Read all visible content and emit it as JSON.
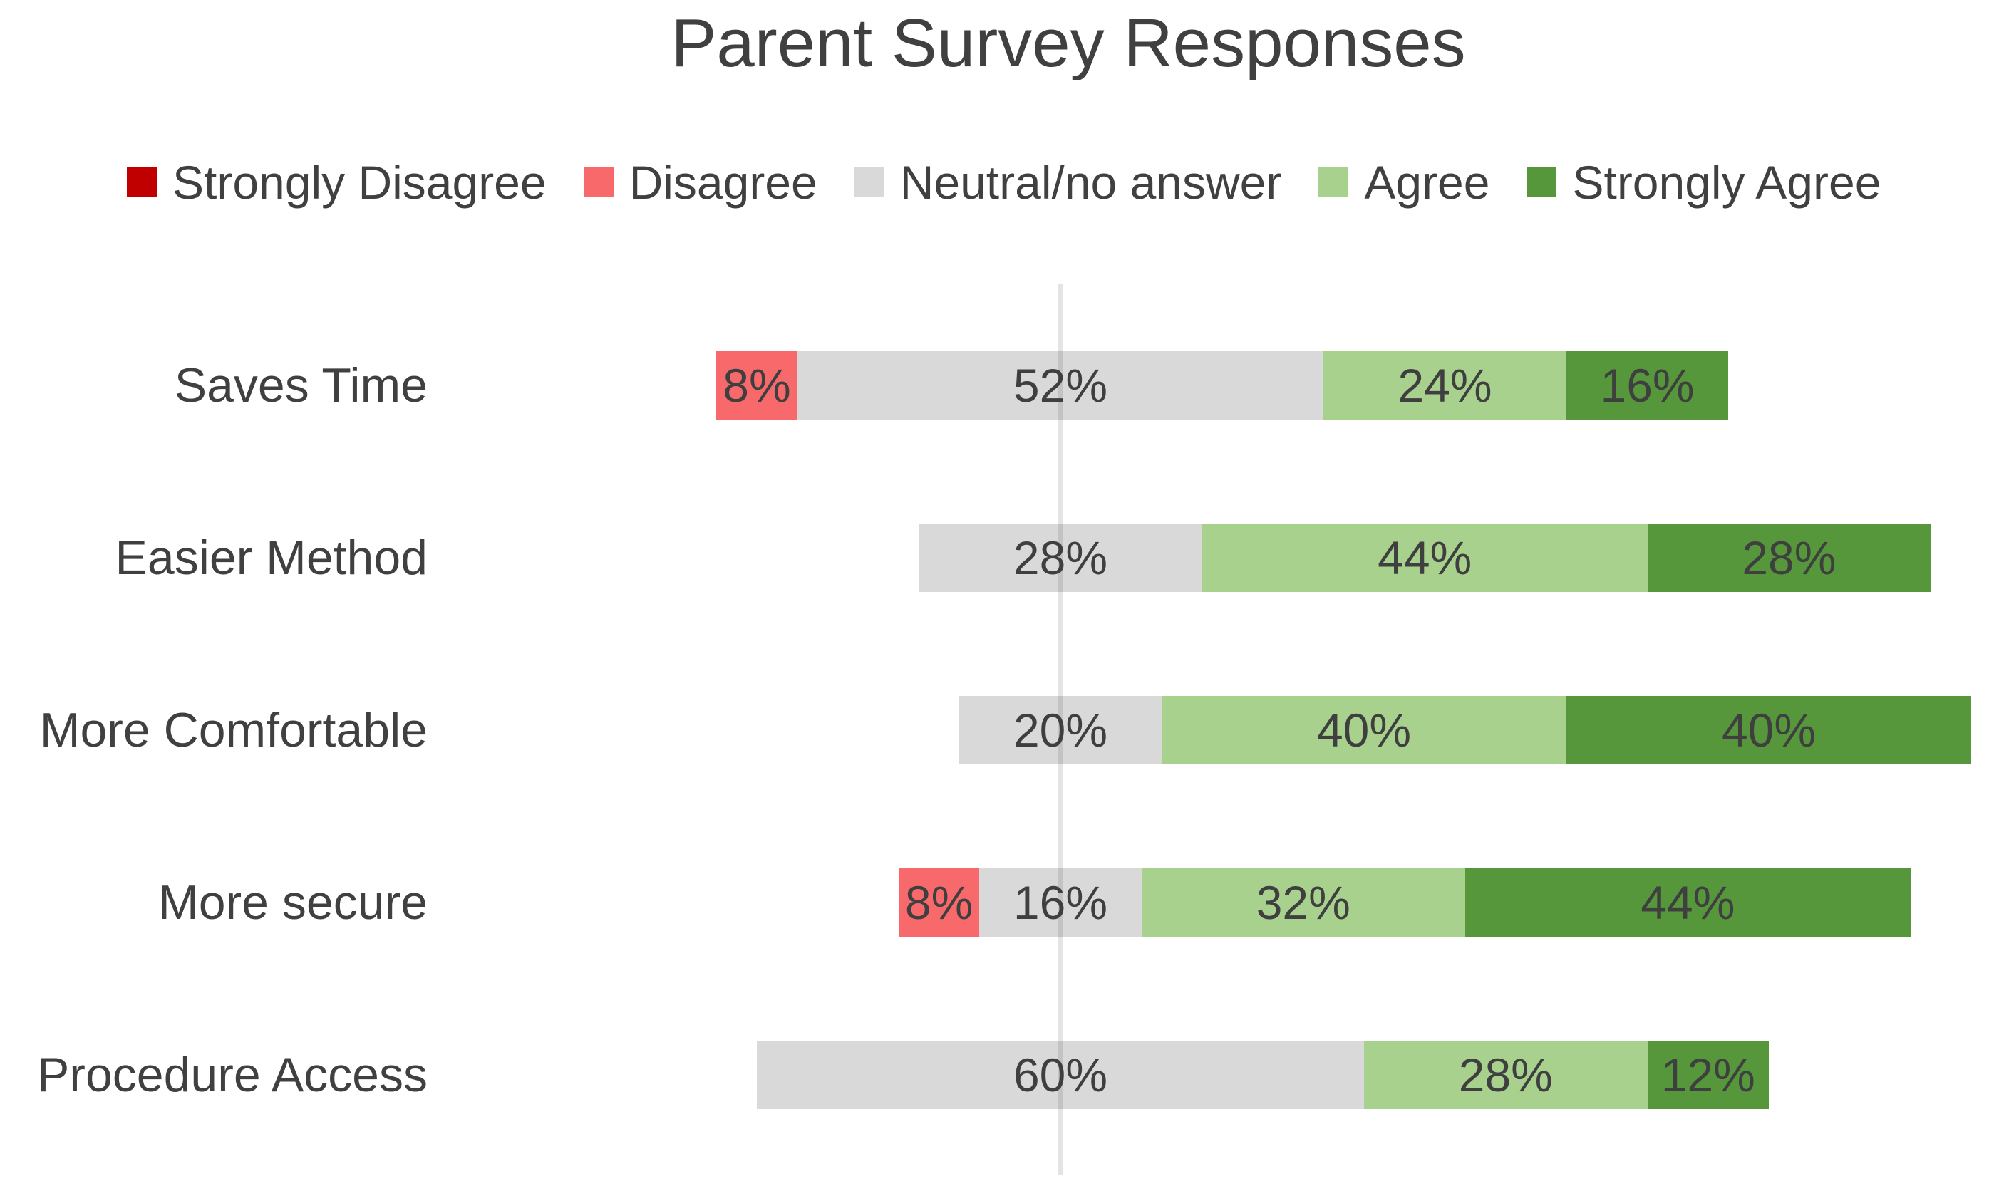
{
  "title": "Parent Survey Responses",
  "colors": {
    "text": "#404040",
    "data_label_text": "#3F3F3F",
    "background": "#FFFFFF",
    "axis_gridline": "#DEDEDE"
  },
  "chart_data": {
    "type": "bar",
    "subtype": "diverging-stacked-horizontal",
    "title": "Parent Survey Responses",
    "unit": "%",
    "legend_position": "top",
    "legend": [
      {
        "label": "Strongly Disagree",
        "color": "#C00000"
      },
      {
        "label": "Disagree",
        "color": "#F8696B"
      },
      {
        "label": "Neutral/no answer",
        "color": "#D9D9D9"
      },
      {
        "label": "Agree",
        "color": "#A9D18E"
      },
      {
        "label": "Strongly Agree",
        "color": "#56973C"
      }
    ],
    "categories": [
      "Saves Time",
      "Easier Method",
      "More Comfortable",
      "More secure",
      "Procedure Access"
    ],
    "series": [
      {
        "name": "Strongly Disagree",
        "color": "#C00000",
        "values": [
          0,
          0,
          0,
          0,
          0
        ]
      },
      {
        "name": "Disagree",
        "color": "#F8696B",
        "values": [
          8,
          0,
          0,
          8,
          0
        ]
      },
      {
        "name": "Neutral/no answer",
        "color": "#D9D9D9",
        "values": [
          52,
          28,
          20,
          16,
          60
        ]
      },
      {
        "name": "Agree",
        "color": "#A9D18E",
        "values": [
          24,
          44,
          40,
          32,
          28
        ]
      },
      {
        "name": "Strongly Agree",
        "color": "#56973C",
        "values": [
          16,
          28,
          40,
          44,
          12
        ]
      }
    ],
    "data_labels": "value with % sign centered inside each nonzero segment",
    "axis": {
      "orientation": "horizontal bars, single vertical gridline",
      "alignment": "negative responses plus half of neutral extend left of the gridline",
      "gridline_color": "#DEDEDE"
    }
  }
}
